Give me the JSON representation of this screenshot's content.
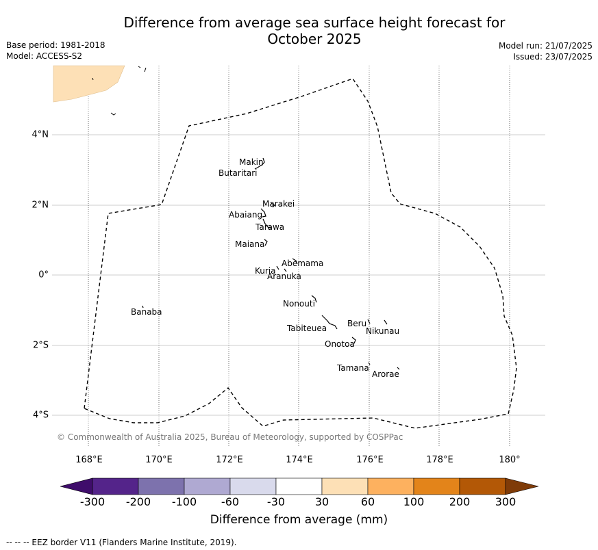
{
  "title_line1": "Difference from average sea surface height forecast for",
  "title_line2": "October 2025",
  "meta_left": {
    "base_period": "Base period: 1981-2018",
    "model": "Model: ACCESS-S2"
  },
  "meta_right": {
    "model_run": "Model run: 21/07/2025",
    "issued": "Issued: 23/07/2025"
  },
  "copyright": "© Commonwealth of Australia 2025, Bureau of Meteorology, supported by COSPPac",
  "x_ticks": [
    "168°E",
    "170°E",
    "172°E",
    "174°E",
    "176°E",
    "178°E",
    "180°"
  ],
  "y_ticks": [
    "4°N",
    "2°N",
    "0°",
    "2°S",
    "4°S"
  ],
  "islands": [
    {
      "name": "Makin"
    },
    {
      "name": "Butaritari"
    },
    {
      "name": "Marakei"
    },
    {
      "name": "Abaiang"
    },
    {
      "name": "Tarawa"
    },
    {
      "name": "Maiana"
    },
    {
      "name": "Abemama"
    },
    {
      "name": "Kuria"
    },
    {
      "name": "Aranuka"
    },
    {
      "name": "Nonouti"
    },
    {
      "name": "Banaba"
    },
    {
      "name": "Beru"
    },
    {
      "name": "Nikunau"
    },
    {
      "name": "Tabiteuea"
    },
    {
      "name": "Onotoa"
    },
    {
      "name": "Tamana"
    },
    {
      "name": "Arorae"
    }
  ],
  "colorbar": {
    "title": "Difference from average (mm)",
    "labels": [
      "-300",
      "-200",
      "-100",
      "-60",
      "-30",
      "30",
      "60",
      "100",
      "200",
      "300"
    ],
    "colors": [
      "#3f0d6b",
      "#54248a",
      "#7d72ad",
      "#afa9d2",
      "#d9daec",
      "#ffffff",
      "#fde0b6",
      "#fdb15f",
      "#e3841a",
      "#b35806",
      "#7f3b08"
    ]
  },
  "map_fill_color": "#fde0b6",
  "eez_note": "--  --  -- EEZ border V11 (Flanders Marine Institute, 2019)."
}
